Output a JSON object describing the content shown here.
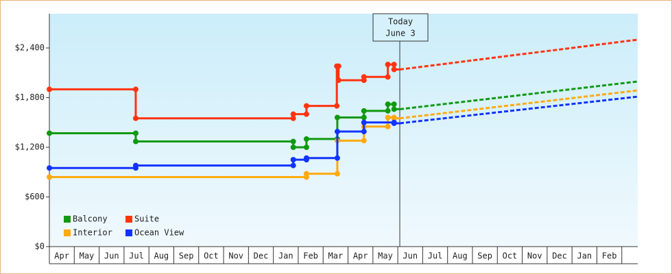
{
  "chart_data": {
    "type": "step-line",
    "xlim": [
      0,
      23.64
    ],
    "ylim": [
      0,
      2814
    ],
    "yticks": [
      {
        "value": 0,
        "label": "$0"
      },
      {
        "value": 600,
        "label": "$600"
      },
      {
        "value": 1200,
        "label": "$1,200"
      },
      {
        "value": 1800,
        "label": "$1,800"
      },
      {
        "value": 2400,
        "label": "$2,400"
      }
    ],
    "xticks": [
      {
        "value": 0.5,
        "label": "Apr"
      },
      {
        "value": 1.5,
        "label": "May"
      },
      {
        "value": 2.5,
        "label": "Jun"
      },
      {
        "value": 3.5,
        "label": "Jul"
      },
      {
        "value": 4.5,
        "label": "Aug"
      },
      {
        "value": 5.5,
        "label": "Sep"
      },
      {
        "value": 6.5,
        "label": "Oct"
      },
      {
        "value": 7.5,
        "label": "Nov"
      },
      {
        "value": 8.5,
        "label": "Dec"
      },
      {
        "value": 9.5,
        "label": "Jan"
      },
      {
        "value": 10.5,
        "label": "Feb"
      },
      {
        "value": 11.5,
        "label": "Mar"
      },
      {
        "value": 12.5,
        "label": "Apr"
      },
      {
        "value": 13.5,
        "label": "May"
      },
      {
        "value": 14.5,
        "label": "Jun"
      },
      {
        "value": 15.5,
        "label": "Jul"
      },
      {
        "value": 16.5,
        "label": "Aug"
      },
      {
        "value": 17.5,
        "label": "Sep"
      },
      {
        "value": 18.5,
        "label": "Oct"
      },
      {
        "value": 19.5,
        "label": "Nov"
      },
      {
        "value": 20.5,
        "label": "Dec"
      },
      {
        "value": 21.5,
        "label": "Jan"
      },
      {
        "value": 22.5,
        "label": "Feb"
      }
    ],
    "annotation": {
      "text": [
        "Today",
        "June 3"
      ],
      "x": 14.08
    },
    "legend": "bottom-left",
    "series": [
      {
        "name": "Balcony",
        "color": "#119911",
        "x": [
          0,
          3.47,
          9.8,
          10.33,
          11.57,
          12.64,
          13.6,
          13.85
        ],
        "values": [
          1370,
          1270,
          1200,
          1300,
          1560,
          1640,
          1720,
          1660
        ],
        "projection": {
          "x": [
            14.08,
            23.64
          ],
          "values": [
            1660,
            1995
          ]
        }
      },
      {
        "name": "Suite",
        "color": "#ff3311",
        "x": [
          0,
          3.47,
          9.8,
          10.33,
          11.55,
          11.62,
          12.64,
          13.6,
          13.85
        ],
        "values": [
          1900,
          1550,
          1600,
          1700,
          2180,
          2010,
          2050,
          2200,
          2140
        ],
        "projection": {
          "x": [
            14.08,
            23.64
          ],
          "values": [
            2140,
            2500
          ]
        }
      },
      {
        "name": "Interior",
        "color": "#ffaa11",
        "x": [
          0,
          10.33,
          11.57,
          12.64,
          13.6,
          13.85
        ],
        "values": [
          840,
          880,
          1280,
          1450,
          1560,
          1550
        ],
        "projection": {
          "x": [
            14.08,
            23.64
          ],
          "values": [
            1550,
            1887
          ]
        }
      },
      {
        "name": "Ocean View",
        "color": "#1133ff",
        "x": [
          0,
          3.47,
          9.8,
          10.33,
          11.57,
          12.64,
          13.85
        ],
        "values": [
          950,
          980,
          1050,
          1070,
          1390,
          1500,
          1490
        ],
        "projection": {
          "x": [
            14.08,
            23.64
          ],
          "values": [
            1490,
            1812
          ]
        }
      }
    ]
  }
}
